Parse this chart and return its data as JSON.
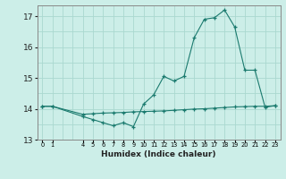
{
  "xlabel": "Humidex (Indice chaleur)",
  "background_color": "#cceee8",
  "grid_color": "#aad8d0",
  "line_color": "#1a7a6e",
  "xlim": [
    -0.5,
    23.5
  ],
  "ylim": [
    13.0,
    17.35
  ],
  "yticks": [
    13,
    14,
    15,
    16,
    17
  ],
  "xtick_positions": [
    0,
    1,
    4,
    5,
    6,
    7,
    8,
    9,
    10,
    11,
    12,
    13,
    14,
    15,
    16,
    17,
    18,
    19,
    20,
    21,
    22,
    23
  ],
  "xtick_labels": [
    "0",
    "1",
    "4",
    "5",
    "6",
    "7",
    "8",
    "9",
    "10",
    "11",
    "12",
    "13",
    "14",
    "15",
    "16",
    "17",
    "18",
    "19",
    "20",
    "21",
    "22",
    "23"
  ],
  "series1_x": [
    0,
    1,
    4,
    5,
    6,
    7,
    8,
    9,
    10,
    11,
    12,
    13,
    14,
    15,
    16,
    17,
    18,
    19,
    20,
    21,
    22,
    23
  ],
  "series1_y": [
    14.08,
    14.08,
    13.75,
    13.65,
    13.55,
    13.45,
    13.55,
    13.42,
    14.15,
    14.45,
    15.05,
    14.9,
    15.05,
    16.3,
    16.9,
    16.95,
    17.2,
    16.65,
    15.25,
    15.25,
    14.05,
    14.1
  ],
  "series2_x": [
    0,
    1,
    4,
    5,
    6,
    7,
    8,
    9,
    10,
    11,
    12,
    13,
    14,
    15,
    16,
    17,
    18,
    19,
    20,
    21,
    22,
    23
  ],
  "series2_y": [
    14.08,
    14.08,
    13.82,
    13.84,
    13.86,
    13.87,
    13.88,
    13.9,
    13.91,
    13.92,
    13.93,
    13.95,
    13.97,
    13.99,
    14.0,
    14.02,
    14.04,
    14.06,
    14.07,
    14.08,
    14.08,
    14.1
  ]
}
